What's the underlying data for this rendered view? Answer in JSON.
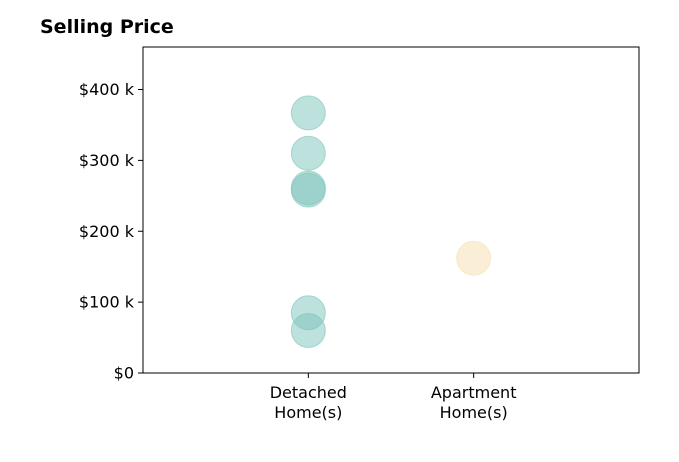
{
  "chart_data": {
    "type": "scatter",
    "title": "Selling Price",
    "xlabel": "",
    "ylabel": "",
    "categories": [
      [
        "Detached",
        "Home(s)"
      ],
      [
        "Apartment",
        "Home(s)"
      ]
    ],
    "xlim": [
      -1,
      2
    ],
    "ylim": [
      0,
      460000
    ],
    "yticks": [
      0,
      100000,
      200000,
      300000,
      400000
    ],
    "ytick_labels": [
      "$0",
      "$100 k",
      "$200 k",
      "$300 k",
      "$400 k"
    ],
    "grid": false,
    "legend": "none",
    "series": [
      {
        "category_index": 0,
        "color": "#7bc4b9",
        "values": [
          367000,
          310000,
          261000,
          258000,
          85000,
          60000
        ]
      },
      {
        "category_index": 1,
        "color": "#f5dfad",
        "values": [
          162000
        ]
      }
    ]
  }
}
